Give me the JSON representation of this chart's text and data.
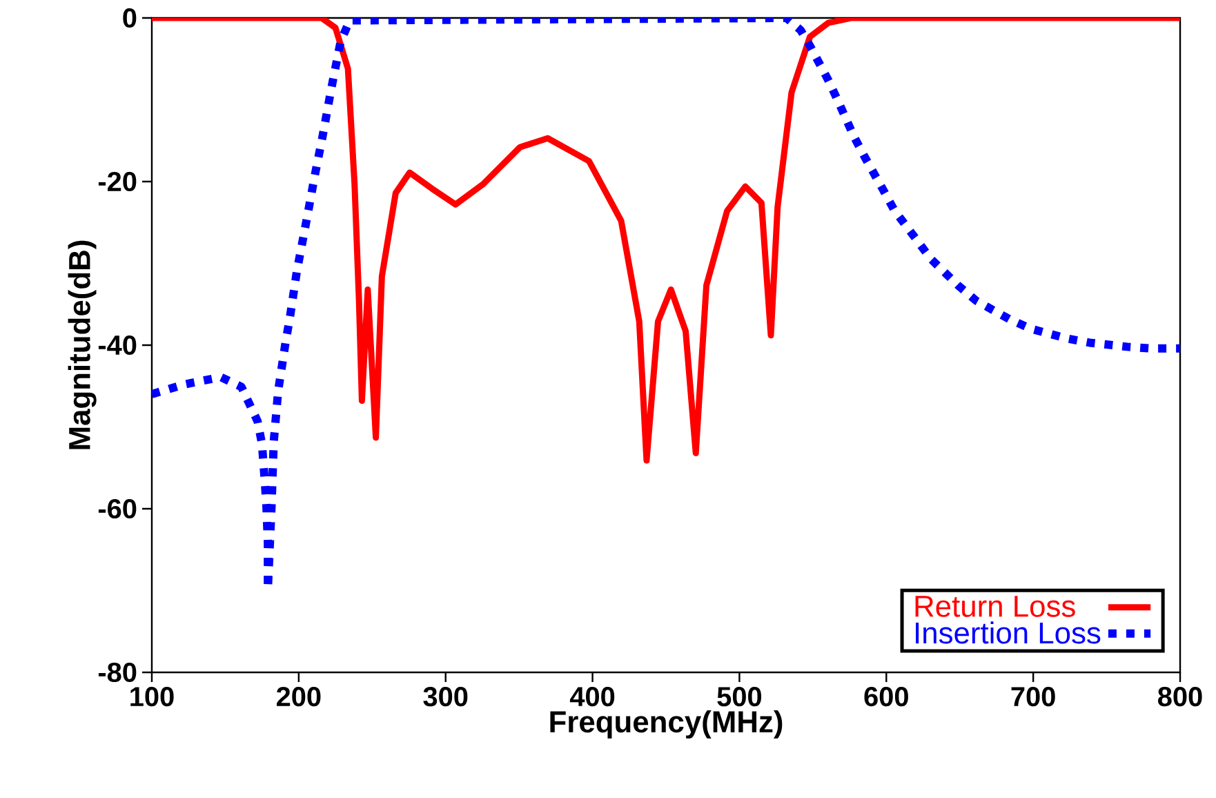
{
  "chart_data": {
    "type": "line",
    "xlabel": "Frequency(MHz)",
    "ylabel": "Magnitude(dB)",
    "xlim": [
      100,
      800
    ],
    "ylim": [
      -80,
      0
    ],
    "xticks": [
      100,
      200,
      300,
      400,
      500,
      600,
      700,
      800
    ],
    "yticks": [
      -80,
      -60,
      -40,
      -20,
      0
    ],
    "legend": "bottom right",
    "series": [
      {
        "name": "Return Loss",
        "color": "#ff0000",
        "line_style": "solid",
        "x": [
          100,
          215.6,
          225,
          233.5,
          238,
          241,
          243,
          247,
          252.5,
          256.6,
          266,
          275.5,
          291,
          306.8,
          325.6,
          350.6,
          369.5,
          397.6,
          419.5,
          431.8,
          436.8,
          444.6,
          453.4,
          463.4,
          470.3,
          477.5,
          491.6,
          504,
          515,
          521.4,
          526,
          535.5,
          548,
          560.5,
          576,
          800
        ],
        "values": [
          0,
          0,
          -1.2,
          -6.2,
          -20.3,
          -34.4,
          -46.8,
          -33.2,
          -51.3,
          -31.6,
          -21.4,
          -18.9,
          -20.9,
          -22.8,
          -20.3,
          -15.8,
          -14.7,
          -17.5,
          -24.8,
          -37.1,
          -54.1,
          -37.1,
          -33.2,
          -38.3,
          -53.2,
          -32.7,
          -23.6,
          -20.6,
          -22.6,
          -38.8,
          -23.1,
          -9.1,
          -2.3,
          -0.6,
          0,
          0
        ]
      },
      {
        "name": "Insertion Loss",
        "color": "#0000ff",
        "line_style": "dotted",
        "x": [
          100,
          122,
          147,
          161,
          172,
          175,
          177,
          178,
          179,
          179,
          181.5,
          183,
          186,
          191,
          194,
          198.7,
          206.5,
          211,
          216,
          222,
          228.5,
          234.7,
          532,
          541.7,
          548,
          560.5,
          567,
          577.7,
          585,
          597.5,
          605.4,
          621,
          630,
          648.9,
          661.4,
          683.6,
          698.4,
          723.4,
          738.4,
          764,
          779.8,
          800
        ],
        "values": [
          -46,
          -44.8,
          -43.9,
          -45.1,
          -49.3,
          -52.1,
          -56.9,
          -59.7,
          -64.2,
          -69.8,
          -59.7,
          -51.8,
          -45.6,
          -39.7,
          -36.6,
          -31,
          -23.6,
          -19.2,
          -14.7,
          -8.8,
          -2.9,
          -0.3,
          0,
          -1.5,
          -3.4,
          -7.6,
          -10.1,
          -14.4,
          -16.9,
          -20.9,
          -23.5,
          -27.2,
          -29.4,
          -32.7,
          -34.6,
          -36.8,
          -38,
          -39.2,
          -39.7,
          -40.2,
          -40.4,
          -40.4
        ]
      }
    ]
  }
}
